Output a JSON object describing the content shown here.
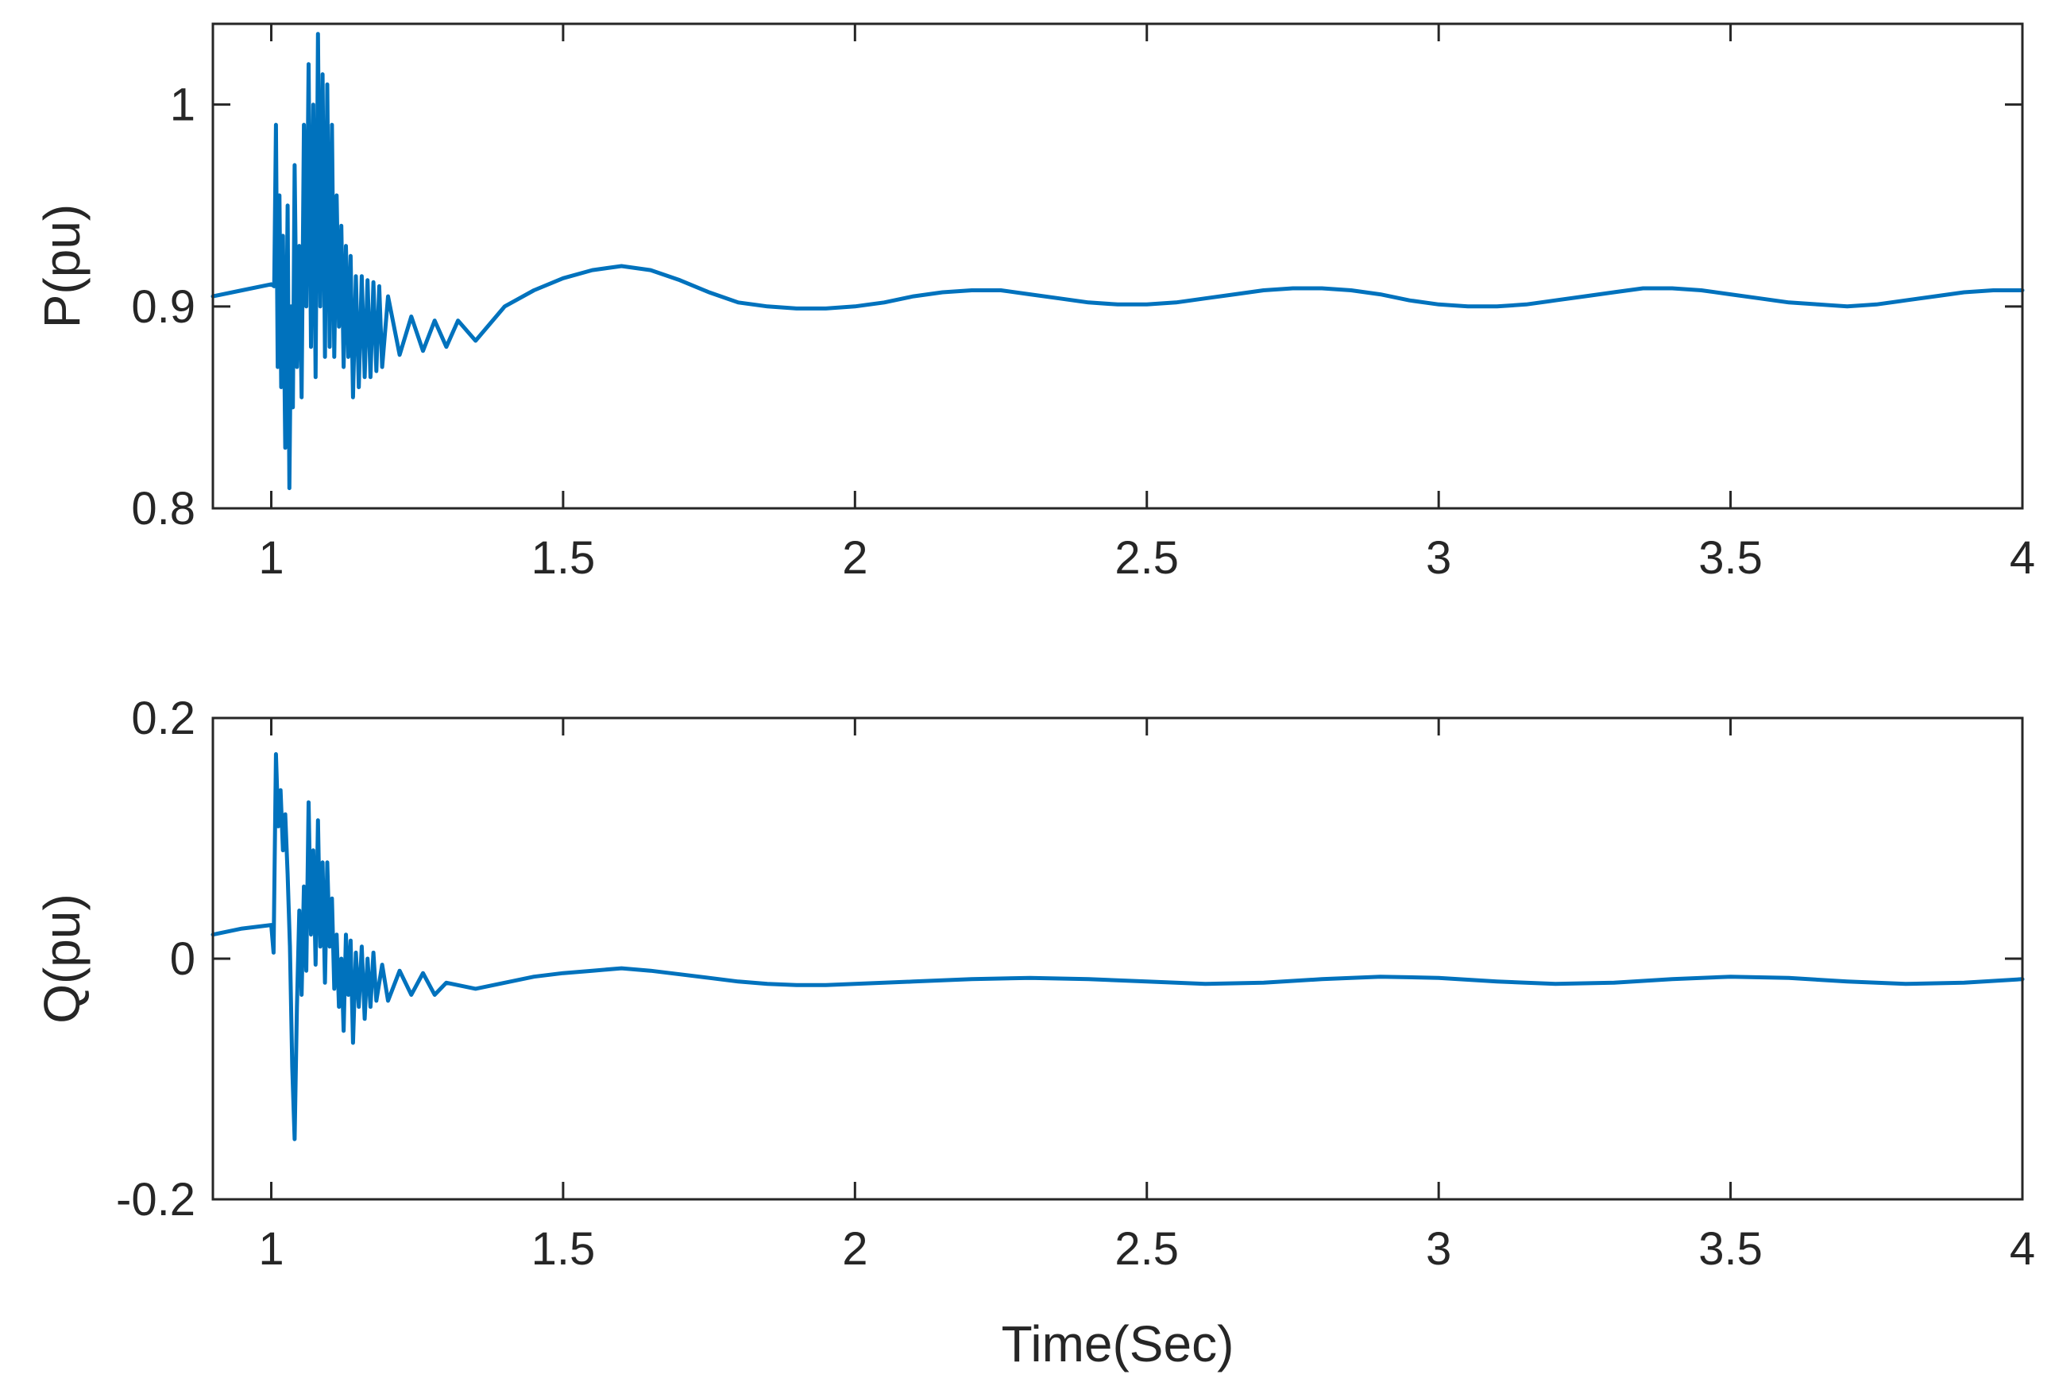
{
  "chart_data": [
    {
      "type": "line",
      "id": "p",
      "title": "",
      "xlabel": "",
      "ylabel": "P(pu)",
      "xlim": [
        0.9,
        4.0
      ],
      "ylim": [
        0.8,
        1.04
      ],
      "xticks": [
        1,
        1.5,
        2,
        2.5,
        3,
        3.5,
        4
      ],
      "xtick_labels": [
        "1",
        "1.5",
        "2",
        "2.5",
        "3",
        "3.5",
        "4"
      ],
      "yticks": [
        0.8,
        0.9,
        1.0
      ],
      "ytick_labels": [
        "0.8",
        "0.9",
        "1"
      ],
      "series": [
        {
          "name": "P",
          "color": "#0072BD",
          "x": [
            0.9,
            0.95,
            1.0,
            1.005,
            1.008,
            1.011,
            1.014,
            1.017,
            1.02,
            1.024,
            1.028,
            1.031,
            1.034,
            1.037,
            1.04,
            1.044,
            1.048,
            1.052,
            1.056,
            1.06,
            1.064,
            1.068,
            1.072,
            1.076,
            1.08,
            1.084,
            1.088,
            1.092,
            1.096,
            1.1,
            1.104,
            1.108,
            1.112,
            1.116,
            1.12,
            1.124,
            1.128,
            1.132,
            1.136,
            1.14,
            1.145,
            1.15,
            1.155,
            1.16,
            1.165,
            1.17,
            1.175,
            1.18,
            1.185,
            1.19,
            1.2,
            1.22,
            1.24,
            1.26,
            1.28,
            1.3,
            1.32,
            1.35,
            1.4,
            1.45,
            1.5,
            1.55,
            1.6,
            1.65,
            1.7,
            1.75,
            1.8,
            1.85,
            1.9,
            1.95,
            2.0,
            2.05,
            2.1,
            2.15,
            2.2,
            2.25,
            2.3,
            2.35,
            2.4,
            2.45,
            2.5,
            2.55,
            2.6,
            2.65,
            2.7,
            2.75,
            2.8,
            2.85,
            2.9,
            2.95,
            3.0,
            3.05,
            3.1,
            3.15,
            3.2,
            3.25,
            3.3,
            3.35,
            3.4,
            3.45,
            3.5,
            3.55,
            3.6,
            3.65,
            3.7,
            3.75,
            3.8,
            3.85,
            3.9,
            3.95,
            4.0
          ],
          "y": [
            0.905,
            0.908,
            0.911,
            0.91,
            0.99,
            0.87,
            0.955,
            0.86,
            0.935,
            0.83,
            0.95,
            0.81,
            0.9,
            0.85,
            0.97,
            0.87,
            0.93,
            0.855,
            0.99,
            0.9,
            1.02,
            0.88,
            1.0,
            0.865,
            1.035,
            0.9,
            1.015,
            0.875,
            1.01,
            0.88,
            0.99,
            0.875,
            0.955,
            0.89,
            0.94,
            0.87,
            0.93,
            0.875,
            0.925,
            0.855,
            0.915,
            0.86,
            0.915,
            0.865,
            0.913,
            0.865,
            0.912,
            0.868,
            0.91,
            0.87,
            0.905,
            0.876,
            0.895,
            0.878,
            0.893,
            0.88,
            0.893,
            0.883,
            0.9,
            0.908,
            0.914,
            0.918,
            0.92,
            0.918,
            0.913,
            0.907,
            0.902,
            0.9,
            0.899,
            0.899,
            0.9,
            0.902,
            0.905,
            0.907,
            0.908,
            0.908,
            0.906,
            0.904,
            0.902,
            0.901,
            0.901,
            0.902,
            0.904,
            0.906,
            0.908,
            0.909,
            0.909,
            0.908,
            0.906,
            0.903,
            0.901,
            0.9,
            0.9,
            0.901,
            0.903,
            0.905,
            0.907,
            0.909,
            0.909,
            0.908,
            0.906,
            0.904,
            0.902,
            0.901,
            0.9,
            0.901,
            0.903,
            0.905,
            0.907,
            0.908,
            0.908
          ]
        }
      ]
    },
    {
      "type": "line",
      "id": "q",
      "title": "",
      "xlabel": "Time(Sec)",
      "ylabel": "Q(pu)",
      "xlim": [
        0.9,
        4.0
      ],
      "ylim": [
        -0.2,
        0.2
      ],
      "xticks": [
        1,
        1.5,
        2,
        2.5,
        3,
        3.5,
        4
      ],
      "xtick_labels": [
        "1",
        "1.5",
        "2",
        "2.5",
        "3",
        "3.5",
        "4"
      ],
      "yticks": [
        -0.2,
        0,
        0.2
      ],
      "ytick_labels": [
        "-0.2",
        "0",
        "0.2"
      ],
      "series": [
        {
          "name": "Q",
          "color": "#0072BD",
          "x": [
            0.9,
            0.95,
            1.0,
            1.004,
            1.008,
            1.012,
            1.016,
            1.02,
            1.024,
            1.028,
            1.032,
            1.036,
            1.04,
            1.044,
            1.048,
            1.052,
            1.056,
            1.06,
            1.064,
            1.068,
            1.072,
            1.076,
            1.08,
            1.084,
            1.088,
            1.092,
            1.096,
            1.1,
            1.104,
            1.108,
            1.112,
            1.116,
            1.12,
            1.124,
            1.128,
            1.132,
            1.136,
            1.14,
            1.145,
            1.15,
            1.155,
            1.16,
            1.165,
            1.17,
            1.175,
            1.18,
            1.19,
            1.2,
            1.22,
            1.24,
            1.26,
            1.28,
            1.3,
            1.35,
            1.4,
            1.45,
            1.5,
            1.55,
            1.6,
            1.65,
            1.7,
            1.75,
            1.8,
            1.85,
            1.9,
            1.95,
            2.0,
            2.1,
            2.2,
            2.3,
            2.4,
            2.5,
            2.6,
            2.7,
            2.8,
            2.9,
            3.0,
            3.1,
            3.2,
            3.3,
            3.4,
            3.5,
            3.6,
            3.7,
            3.8,
            3.9,
            4.0
          ],
          "y": [
            0.02,
            0.025,
            0.028,
            0.005,
            0.17,
            0.11,
            0.14,
            0.09,
            0.12,
            0.07,
            0.01,
            -0.09,
            -0.15,
            -0.04,
            0.04,
            -0.03,
            0.06,
            -0.01,
            0.13,
            0.02,
            0.09,
            -0.005,
            0.115,
            0.01,
            0.08,
            -0.02,
            0.08,
            0.01,
            0.05,
            -0.025,
            0.02,
            -0.04,
            0.0,
            -0.06,
            0.02,
            -0.03,
            0.015,
            -0.07,
            0.005,
            -0.04,
            0.01,
            -0.05,
            0.0,
            -0.04,
            0.005,
            -0.035,
            -0.005,
            -0.035,
            -0.01,
            -0.03,
            -0.012,
            -0.03,
            -0.02,
            -0.025,
            -0.02,
            -0.015,
            -0.012,
            -0.01,
            -0.008,
            -0.01,
            -0.013,
            -0.016,
            -0.019,
            -0.021,
            -0.022,
            -0.022,
            -0.021,
            -0.019,
            -0.017,
            -0.016,
            -0.017,
            -0.019,
            -0.021,
            -0.02,
            -0.017,
            -0.015,
            -0.016,
            -0.019,
            -0.021,
            -0.02,
            -0.017,
            -0.015,
            -0.016,
            -0.019,
            -0.021,
            -0.02,
            -0.017
          ]
        }
      ]
    }
  ]
}
